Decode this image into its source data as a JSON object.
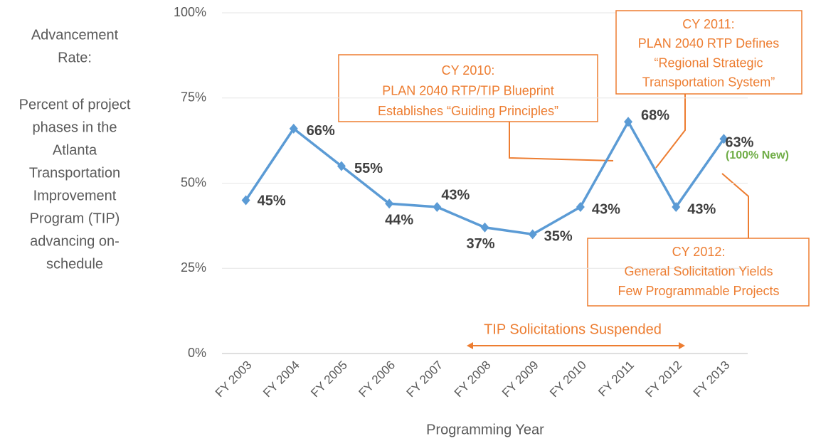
{
  "chart_data": {
    "type": "line",
    "y_label_heading": [
      "Advancement",
      "Rate:"
    ],
    "y_label_lines": [
      "Percent of project",
      "phases in the",
      "Atlanta",
      "Transportation",
      "Improvement",
      "Program (TIP)",
      "advancing on-",
      "schedule"
    ],
    "x_label": "Programming Year",
    "categories": [
      "FY 2003",
      "FY 2004",
      "FY 2005",
      "FY 2006",
      "FY 2007",
      "FY 2008",
      "FY 2009",
      "FY 2010",
      "FY 2011",
      "FY 2012",
      "FY 2013"
    ],
    "series": [
      {
        "color": "#5b9bd5",
        "values": [
          45,
          66,
          55,
          44,
          43,
          37,
          35,
          43,
          68,
          43,
          63
        ],
        "value_labels": [
          "45%",
          "66%",
          "55%",
          "44%",
          "43%",
          "37%",
          "35%",
          "43%",
          "68%",
          "43%",
          "63%"
        ]
      }
    ],
    "ylim": [
      0,
      100
    ],
    "yticks": [
      {
        "value": 0,
        "label": "0%"
      },
      {
        "value": 25,
        "label": "25%"
      },
      {
        "value": 50,
        "label": "50%"
      },
      {
        "value": 75,
        "label": "75%"
      },
      {
        "value": 100,
        "label": "100%"
      }
    ],
    "grid": true,
    "annotations": [
      {
        "lines": [
          "CY 2010:",
          "PLAN 2040 RTP/TIP Blueprint",
          "Establishes “Guiding Principles”"
        ]
      },
      {
        "lines": [
          "CY 2011:",
          "PLAN 2040 RTP Defines",
          "“Regional Strategic",
          "Transportation System”"
        ]
      },
      {
        "lines": [
          "CY 2012:",
          "General Solicitation Yields",
          "Few Programmable Projects"
        ]
      }
    ],
    "note_2013": "(100% New)",
    "span_label": "TIP Solicitations Suspended"
  }
}
